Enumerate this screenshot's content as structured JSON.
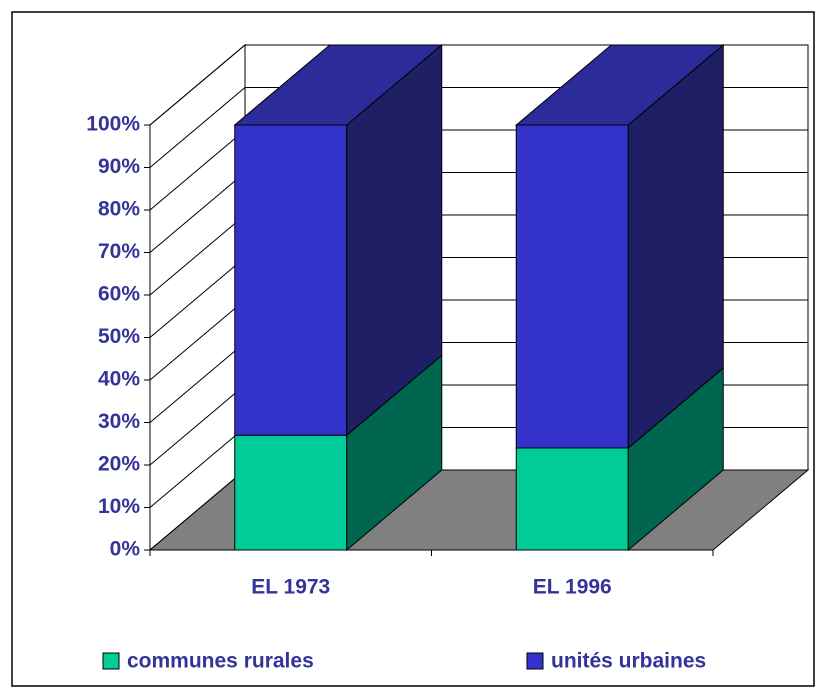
{
  "chart_data": {
    "type": "bar3d_stacked",
    "categories": [
      "EL 1973",
      "EL 1996"
    ],
    "series": [
      {
        "name": "communes rurales",
        "color": "#00cc99",
        "values": [
          27,
          24
        ]
      },
      {
        "name": "unités urbaines",
        "color": "#3333cc",
        "values": [
          73,
          76
        ]
      }
    ],
    "ylim": [
      0,
      100
    ],
    "yticks": [
      {
        "value": 0,
        "label": "0%"
      },
      {
        "value": 10,
        "label": "10%"
      },
      {
        "value": 20,
        "label": "20%"
      },
      {
        "value": 30,
        "label": "30%"
      },
      {
        "value": 40,
        "label": "40%"
      },
      {
        "value": 50,
        "label": "50%"
      },
      {
        "value": 60,
        "label": "60%"
      },
      {
        "value": 70,
        "label": "70%"
      },
      {
        "value": 80,
        "label": "80%"
      },
      {
        "value": 90,
        "label": "90%"
      },
      {
        "value": 100,
        "label": "100%"
      }
    ],
    "grid": true,
    "legend": "bottom"
  }
}
